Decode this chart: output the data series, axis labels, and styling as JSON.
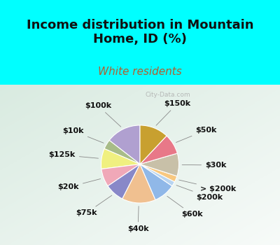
{
  "title": "Income distribution in Mountain\nHome, ID (%)",
  "subtitle": "White residents",
  "background_cyan": "#00FFFF",
  "watermark": "City-Data.com",
  "labels": [
    "$100k",
    "$10k",
    "$125k",
    "$20k",
    "$75k",
    "$40k",
    "$60k",
    "$200k",
    "> $200k",
    "$30k",
    "$50k",
    "$150k"
  ],
  "sizes": [
    14.5,
    4.0,
    8.5,
    7.5,
    8.0,
    14.0,
    9.0,
    2.0,
    2.5,
    9.5,
    8.5,
    12.0
  ],
  "colors": [
    "#b0a0d0",
    "#a8bc88",
    "#f0f080",
    "#f0a8b8",
    "#8888c8",
    "#f0c090",
    "#90b8e8",
    "#b8d4f0",
    "#f8c880",
    "#c8c0a8",
    "#e87888",
    "#c8a030"
  ],
  "label_color": "#111111",
  "title_color": "#111111",
  "subtitle_color": "#b06030",
  "title_fontsize": 13,
  "subtitle_fontsize": 11,
  "label_fontsize": 8,
  "startangle": 90
}
